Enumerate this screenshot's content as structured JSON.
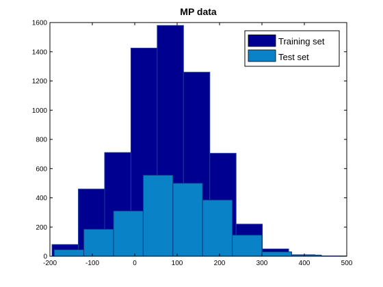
{
  "chart_data": {
    "type": "bar",
    "title": "MP data",
    "xlabel": "",
    "ylabel": "",
    "xlim": [
      -200,
      500
    ],
    "ylim": [
      0,
      1600
    ],
    "xticks": [
      -200,
      -100,
      0,
      100,
      200,
      300,
      400,
      500
    ],
    "yticks": [
      0,
      200,
      400,
      600,
      800,
      1000,
      1200,
      1400,
      1600
    ],
    "legend_position": "top-right",
    "grid": false,
    "series": [
      {
        "name": "Training set",
        "color": "#000090",
        "bins": [
          {
            "x0": -195,
            "x1": -133,
            "value": 80
          },
          {
            "x0": -133,
            "x1": -71,
            "value": 460
          },
          {
            "x0": -71,
            "x1": -9,
            "value": 710
          },
          {
            "x0": -9,
            "x1": 53,
            "value": 1425
          },
          {
            "x0": 53,
            "x1": 115,
            "value": 1580
          },
          {
            "x0": 115,
            "x1": 177,
            "value": 1260
          },
          {
            "x0": 177,
            "x1": 239,
            "value": 705
          },
          {
            "x0": 239,
            "x1": 301,
            "value": 220
          },
          {
            "x0": 301,
            "x1": 363,
            "value": 50
          },
          {
            "x0": 363,
            "x1": 425,
            "value": 10
          },
          {
            "x0": 425,
            "x1": 487,
            "value": 2
          }
        ]
      },
      {
        "name": "Test set",
        "color": "#0a82c8",
        "bins": [
          {
            "x0": -190,
            "x1": -120,
            "value": 45
          },
          {
            "x0": -120,
            "x1": -50,
            "value": 185
          },
          {
            "x0": -50,
            "x1": 20,
            "value": 310
          },
          {
            "x0": 20,
            "x1": 90,
            "value": 555
          },
          {
            "x0": 90,
            "x1": 160,
            "value": 500
          },
          {
            "x0": 160,
            "x1": 230,
            "value": 385
          },
          {
            "x0": 230,
            "x1": 300,
            "value": 145
          },
          {
            "x0": 300,
            "x1": 370,
            "value": 30
          },
          {
            "x0": 370,
            "x1": 440,
            "value": 8
          },
          {
            "x0": 440,
            "x1": 510,
            "value": 2
          }
        ]
      }
    ]
  }
}
